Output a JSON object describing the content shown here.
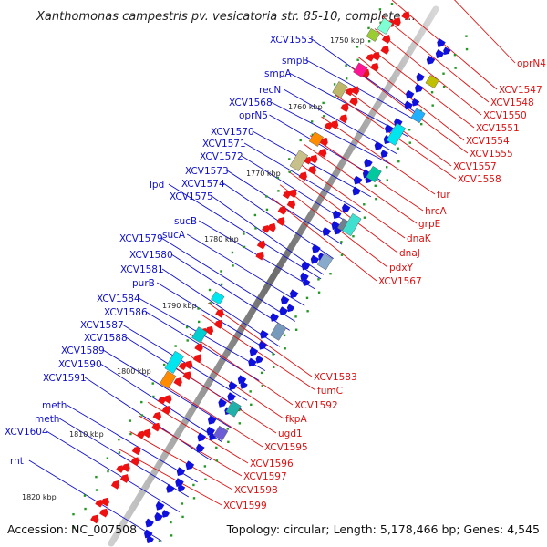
{
  "title": "Xanthomonas campestris pv. vesicatoria str. 85-10, complete ...",
  "footer": {
    "accession": "Accession: NC_007508",
    "topology": "Topology: circular; Length: 5,178,466 bp; Genes: 4,545"
  },
  "colors": {
    "backbone": "#888888",
    "forward_gene": "#1010dd",
    "reverse_gene": "#ee1111",
    "tick": "#229922",
    "label_forward": "#1010cc",
    "label_reverse": "#dd1111"
  },
  "scale_labels": [
    "1750 kbp",
    "1760 kbp",
    "1770 kbp",
    "1780 kbp",
    "1790 kbp",
    "1800 kbp",
    "1810 kbp",
    "1820 kbp"
  ],
  "forward_genes": [
    "XCV1553",
    "smpB",
    "smpA",
    "recN",
    "XCV1568",
    "oprN5",
    "XCV1570",
    "XCV1571",
    "XCV1572",
    "XCV1573",
    "XCV1574",
    "XCV1575",
    "lpd",
    "sucB",
    "sucA",
    "XCV1579",
    "XCV1580",
    "XCV1581",
    "purB",
    "XCV1584",
    "XCV1586",
    "XCV1587",
    "XCV1588",
    "XCV1589",
    "XCV1590",
    "XCV1591",
    "meth",
    "meth",
    "XCV1604",
    "rnt"
  ],
  "reverse_genes": [
    "oprN4",
    "XCV1547",
    "XCV1548",
    "XCV1550",
    "XCV1551",
    "XCV1554",
    "XCV1555",
    "XCV1557",
    "XCV1558",
    "fur",
    "hrcA",
    "grpE",
    "dnaK",
    "dnaJ",
    "pdxY",
    "XCV1567",
    "XCV1583",
    "fumC",
    "XCV1592",
    "fkpA",
    "ugd1",
    "XCV1595",
    "XCV1596",
    "XCV1597",
    "XCV1598",
    "XCV1599"
  ]
}
